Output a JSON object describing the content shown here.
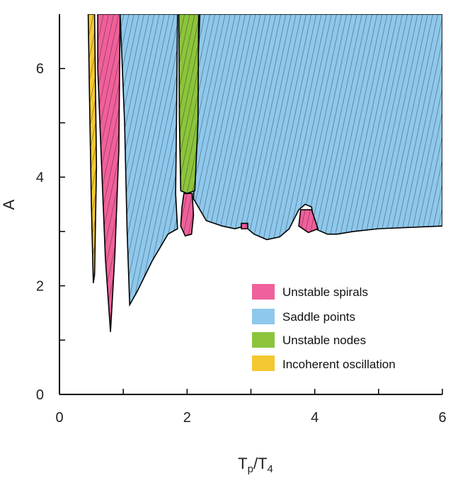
{
  "chart_data": {
    "type": "area",
    "title": "",
    "xlabel": "T",
    "xlabel_sub1": "p",
    "xlabel_sub2": "4",
    "xlabel_sep": "/",
    "ylabel": "A",
    "xlim": [
      0,
      6
    ],
    "ylim": [
      0,
      7
    ],
    "xticks": [
      0,
      1,
      2,
      3,
      4,
      5,
      6
    ],
    "xtick_labels": [
      "0",
      "",
      "2",
      "",
      "4",
      "",
      "6"
    ],
    "yticks": [
      0,
      1,
      2,
      3,
      4,
      5,
      6
    ],
    "ytick_labels": [
      "0",
      "",
      "2",
      "",
      "4",
      "",
      "6"
    ],
    "grid": false,
    "legend_position": "lower-right",
    "series": [
      {
        "name": "Unstable spirals",
        "color": "#f0609a"
      },
      {
        "name": "Saddle points",
        "color": "#8ec8ec"
      },
      {
        "name": "Unstable nodes",
        "color": "#8cc43c"
      },
      {
        "name": "Incoherent oscillation",
        "color": "#f4c830"
      }
    ],
    "regions": [
      {
        "series": "Incoherent oscillation",
        "boundary": [
          [
            0.45,
            7
          ],
          [
            0.55,
            7
          ],
          [
            0.58,
            4.2
          ],
          [
            0.55,
            2.2
          ],
          [
            0.53,
            2.05
          ],
          [
            0.5,
            3.5
          ],
          [
            0.47,
            5.5
          ]
        ]
      },
      {
        "series": "Unstable spirals",
        "boundary": [
          [
            0.6,
            7
          ],
          [
            0.95,
            7
          ],
          [
            0.93,
            4.5
          ],
          [
            0.87,
            2.6
          ],
          [
            0.8,
            1.15
          ],
          [
            0.72,
            2.5
          ],
          [
            0.65,
            4.5
          ],
          [
            0.6,
            6
          ]
        ]
      },
      {
        "series": "Saddle points",
        "boundary": [
          [
            0.95,
            7
          ],
          [
            1.85,
            7
          ],
          [
            1.83,
            4.6
          ],
          [
            1.82,
            3.7
          ],
          [
            1.85,
            3.05
          ],
          [
            1.7,
            2.95
          ],
          [
            1.45,
            2.45
          ],
          [
            1.22,
            1.9
          ],
          [
            1.1,
            1.65
          ],
          [
            1.06,
            3.0
          ],
          [
            1.02,
            5.0
          ]
        ]
      },
      {
        "series": "Saddle points",
        "boundary": [
          [
            2.2,
            7
          ],
          [
            6.0,
            7
          ],
          [
            6.0,
            3.1
          ],
          [
            5.0,
            3.05
          ],
          [
            4.6,
            3.0
          ],
          [
            4.35,
            2.95
          ],
          [
            4.2,
            2.95
          ],
          [
            4.0,
            3.05
          ],
          [
            3.95,
            3.45
          ],
          [
            3.85,
            3.5
          ],
          [
            3.75,
            3.4
          ],
          [
            3.6,
            3.05
          ],
          [
            3.45,
            2.9
          ],
          [
            3.25,
            2.85
          ],
          [
            3.05,
            2.95
          ],
          [
            2.9,
            3.1
          ],
          [
            2.75,
            3.05
          ],
          [
            2.55,
            3.1
          ],
          [
            2.3,
            3.2
          ],
          [
            2.1,
            3.6
          ],
          [
            2.15,
            5.5
          ]
        ]
      },
      {
        "series": "Unstable nodes",
        "boundary": [
          [
            1.87,
            7
          ],
          [
            2.18,
            7
          ],
          [
            2.17,
            5.0
          ],
          [
            2.12,
            3.75
          ],
          [
            2.0,
            3.7
          ],
          [
            1.9,
            3.75
          ],
          [
            1.88,
            5.0
          ]
        ]
      },
      {
        "series": "Unstable spirals",
        "boundary": [
          [
            1.95,
            3.7
          ],
          [
            2.08,
            3.7
          ],
          [
            2.1,
            3.3
          ],
          [
            2.07,
            2.95
          ],
          [
            1.97,
            2.92
          ],
          [
            1.9,
            3.1
          ],
          [
            1.92,
            3.45
          ]
        ]
      },
      {
        "series": "Unstable spirals",
        "boundary": [
          [
            3.78,
            3.4
          ],
          [
            3.95,
            3.4
          ],
          [
            4.05,
            3.05
          ],
          [
            3.9,
            2.98
          ],
          [
            3.75,
            3.1
          ]
        ]
      },
      {
        "series": "Unstable spirals",
        "boundary": [
          [
            2.85,
            3.15
          ],
          [
            2.95,
            3.15
          ],
          [
            2.95,
            3.05
          ],
          [
            2.85,
            3.05
          ]
        ]
      }
    ]
  }
}
